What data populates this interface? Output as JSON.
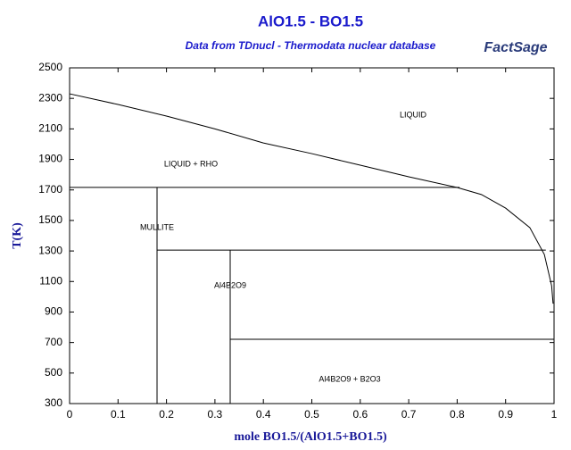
{
  "chart_data": {
    "type": "line",
    "title": "AlO1.5 - BO1.5",
    "subtitle": "Data from TDnucl - Thermodata nuclear database",
    "logo": "FactSage",
    "xlabel": "mole BO1.5/(AlO1.5+BO1.5)",
    "ylabel": "T(K)",
    "xlim": [
      0,
      1
    ],
    "ylim": [
      300,
      2500
    ],
    "xticks": [
      0,
      0.1,
      0.2,
      0.3,
      0.4,
      0.5,
      0.6,
      0.7,
      0.8,
      0.9,
      1
    ],
    "yticks": [
      300,
      500,
      700,
      900,
      1100,
      1300,
      1500,
      1700,
      1900,
      2100,
      2300,
      2500
    ],
    "color": "#000000",
    "series": [
      {
        "x": [
          0,
          0.1,
          0.2,
          0.3,
          0.4,
          0.5,
          0.6,
          0.7,
          0.8,
          0.85,
          0.9,
          0.95,
          0.98,
          0.995,
          0.998
        ],
        "values": [
          2330,
          2260,
          2184,
          2100,
          2008,
          1938,
          1862,
          1786,
          1716,
          1670,
          1581,
          1453,
          1277,
          1072,
          955
        ]
      },
      {
        "x": [
          0,
          0.805
        ],
        "values": [
          1717,
          1717
        ]
      },
      {
        "x": [
          0.1805,
          0.1805
        ],
        "values": [
          300,
          1717
        ]
      },
      {
        "x": [
          0.1805,
          0.983
        ],
        "values": [
          1306,
          1306
        ]
      },
      {
        "x": [
          0.3315,
          0.3315
        ],
        "values": [
          300,
          1306
        ]
      },
      {
        "x": [
          0.3315,
          1
        ],
        "values": [
          721,
          721
        ]
      }
    ],
    "annotations": [
      "LIQUID",
      "LIQUID + RHO",
      "MULLITE",
      "Al4B2O9",
      "Al4B2O9 + B2O3"
    ]
  }
}
